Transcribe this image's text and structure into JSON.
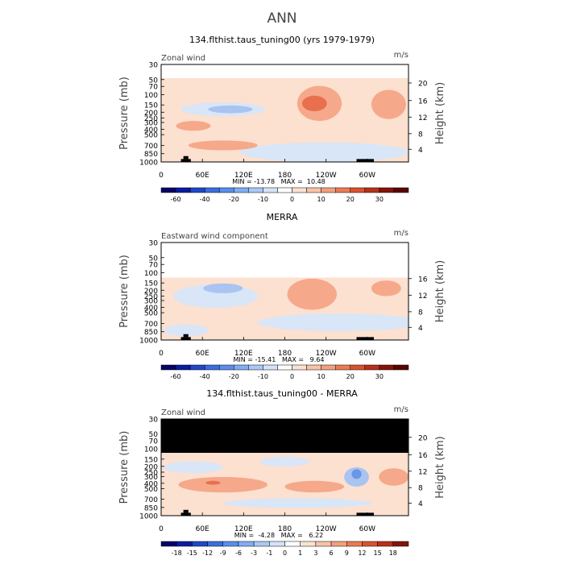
{
  "page_title": "ANN",
  "colors": {
    "frame": "#000000",
    "missing": "#000000",
    "light_red": "#FCE0D0",
    "mid_red": "#F5A98A",
    "strong_red": "#E8704F",
    "light_blue": "#D8E6F8",
    "mid_blue": "#A9C4F0",
    "strong_blue": "#6A97E6"
  },
  "chart_data": [
    {
      "type": "heatmap",
      "title": "134.flthist.taus_tuning00 (yrs 1979-1979)",
      "left_label": "Zonal wind",
      "units": "m/s",
      "ylabel": "Pressure (mb)",
      "ylabel_right": "Height (km)",
      "pressure_ticks": [
        "30",
        "50",
        "70",
        "100",
        "150",
        "200",
        "250",
        "300",
        "400",
        "500",
        "700",
        "850",
        "1000"
      ],
      "height_ticks": [
        "20",
        "16",
        "12",
        "8",
        "4"
      ],
      "x_ticks": [
        "0",
        "60E",
        "120E",
        "180",
        "120W",
        "60W"
      ],
      "stats": "MIN = -13.78   MAX =  10.48",
      "colorbar_labels": [
        "-60",
        "-40",
        "-20",
        "-10",
        "0",
        "10",
        "20",
        "30"
      ],
      "colorbar_colors": [
        "#08006B",
        "#0A1CA0",
        "#1F48C8",
        "#3A6EE0",
        "#5B8EEA",
        "#80AEF2",
        "#A9C8F6",
        "#D3E3FA",
        "#FFFFFF",
        "#FBE1D0",
        "#F7C3A6",
        "#F2A07C",
        "#EA7B55",
        "#D9532E",
        "#B8311A",
        "#84140A",
        "#5A0402"
      ],
      "data_range": [
        -13.78,
        10.48
      ]
    },
    {
      "type": "heatmap",
      "title": "MERRA",
      "left_label": "Eastward wind component",
      "units": "m/s",
      "ylabel": "Pressure (mb)",
      "ylabel_right": "Height (km)",
      "pressure_ticks": [
        "30",
        "50",
        "70",
        "100",
        "150",
        "200",
        "250",
        "300",
        "400",
        "500",
        "700",
        "850",
        "1000"
      ],
      "height_ticks": [
        "16",
        "12",
        "8",
        "4"
      ],
      "x_ticks": [
        "0",
        "60E",
        "120E",
        "180",
        "120W",
        "60W"
      ],
      "stats": "MIN = -15.41   MAX =   9.64",
      "colorbar_labels": [
        "-60",
        "-40",
        "-20",
        "-10",
        "0",
        "10",
        "20",
        "30"
      ],
      "colorbar_colors": [
        "#08006B",
        "#0A1CA0",
        "#1F48C8",
        "#3A6EE0",
        "#5B8EEA",
        "#80AEF2",
        "#A9C8F6",
        "#D3E3FA",
        "#FFFFFF",
        "#FBE1D0",
        "#F7C3A6",
        "#F2A07C",
        "#EA7B55",
        "#D9532E",
        "#B8311A",
        "#84140A",
        "#5A0402"
      ],
      "data_range": [
        -15.41,
        9.64
      ]
    },
    {
      "type": "heatmap",
      "title": "134.flthist.taus_tuning00 - MERRA",
      "left_label": "Zonal wind",
      "units": "m/s",
      "ylabel": "Pressure (mb)",
      "ylabel_right": "Height (km)",
      "pressure_ticks": [
        "30",
        "50",
        "70",
        "100",
        "150",
        "200",
        "250",
        "300",
        "400",
        "500",
        "700",
        "850",
        "1000"
      ],
      "height_ticks": [
        "20",
        "16",
        "12",
        "8",
        "4"
      ],
      "x_ticks": [
        "0",
        "60E",
        "120E",
        "180",
        "120W",
        "60W"
      ],
      "stats": "MIN =  -4.28   MAX =   6.22",
      "colorbar_labels": [
        "-18",
        "-15",
        "-12",
        "-9",
        "-6",
        "-3",
        "-1",
        "0",
        "1",
        "3",
        "6",
        "9",
        "12",
        "15",
        "18"
      ],
      "colorbar_colors": [
        "#08006B",
        "#0A1CA0",
        "#1F48C8",
        "#3A6EE0",
        "#5B8EEA",
        "#80AEF2",
        "#A9C8F6",
        "#D3E3FA",
        "#FFFFFF",
        "#FBE1D0",
        "#F7C3A6",
        "#F2A07C",
        "#EA7B55",
        "#D9532E",
        "#B8311A",
        "#84140A"
      ],
      "data_range": [
        -4.28,
        6.22
      ]
    }
  ]
}
